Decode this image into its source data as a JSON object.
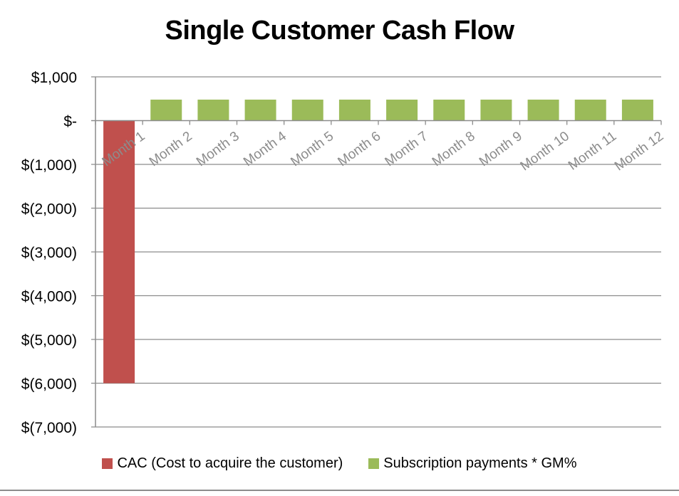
{
  "chart_data": {
    "type": "bar",
    "title": "Single Customer Cash Flow",
    "categories": [
      "Month 1",
      "Month 2",
      "Month 3",
      "Month 4",
      "Month 5",
      "Month 6",
      "Month 7",
      "Month 8",
      "Month 9",
      "Month 10",
      "Month 11",
      "Month 12"
    ],
    "series": [
      {
        "name": "CAC (Cost to acquire the customer)",
        "color": "#c0504d",
        "values": [
          -6000,
          0,
          0,
          0,
          0,
          0,
          0,
          0,
          0,
          0,
          0,
          0
        ]
      },
      {
        "name": "Subscription payments * GM%",
        "color": "#9bbb59",
        "values": [
          0,
          480,
          480,
          480,
          480,
          480,
          480,
          480,
          480,
          480,
          480,
          480
        ]
      }
    ],
    "ylim": [
      -7000,
      1000
    ],
    "yticks": [
      1000,
      0,
      -1000,
      -2000,
      -3000,
      -4000,
      -5000,
      -6000,
      -7000
    ],
    "ytick_labels": [
      "$1,000",
      "$-",
      "$(1,000)",
      "$(2,000)",
      "$(3,000)",
      "$(4,000)",
      "$(5,000)",
      "$(6,000)",
      "$(7,000)"
    ],
    "grid": true,
    "legend_position": "bottom",
    "xlabel": "",
    "ylabel": ""
  }
}
